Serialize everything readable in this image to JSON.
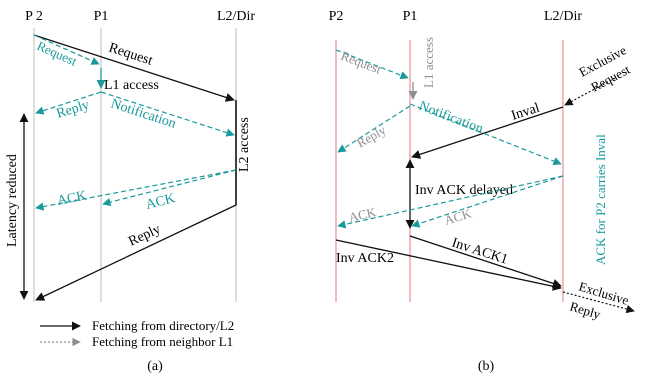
{
  "colors": {
    "black": "#111111",
    "teal": "#1a9a9a",
    "gray": "#8f8f8f",
    "red": "#e57b7b",
    "grid": "#bdbdbd"
  },
  "panel_a": {
    "headers": {
      "p2": "P 2",
      "p1": "P1",
      "dir": "L2/Dir"
    },
    "labels": {
      "request_black": "Request",
      "request_teal": "Request",
      "l1_access": "L1 access",
      "reply_teal": "Reply",
      "notification": "Notification",
      "l2_access": "L2 access",
      "ack_left": "ACK",
      "ack_right": "ACK",
      "reply_black": "Reply",
      "latency_reduced": "Latency reduced"
    },
    "legend": {
      "directory": "Fetching from directory/L2",
      "neighbor": "Fetching from neighbor L1"
    },
    "caption": "(a)"
  },
  "panel_b": {
    "headers": {
      "p2": "P2",
      "p1": "P1",
      "dir": "L2/Dir"
    },
    "labels": {
      "request_gray": "Request",
      "l1_access": "L1 access",
      "notification": "Notification",
      "reply_gray": "Reply",
      "inval": "Inval",
      "exclusive_request_1": "Exclusive",
      "exclusive_request_2": "Request",
      "inv_ack_delayed": "Inv ACK delayed",
      "ack_gray_left": "ACK",
      "ack_gray_right": "ACK",
      "ack_note": "ACK for P2 carries Inval",
      "inv_ack2": "Inv ACK2",
      "inv_ack1": "Inv ACK1",
      "exclusive_reply_1": "Exclusive",
      "exclusive_reply_2": "Reply"
    },
    "caption": "(b)"
  }
}
